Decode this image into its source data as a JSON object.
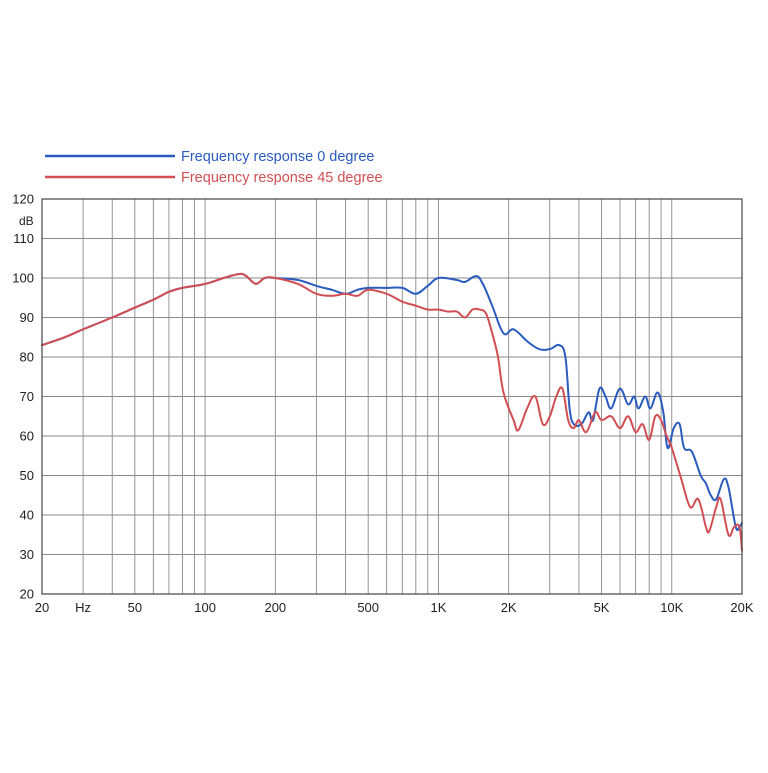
{
  "chart_data": {
    "type": "line",
    "x_scale": "log",
    "xlim": [
      20,
      20000
    ],
    "ylim": [
      20,
      120
    ],
    "grid": true,
    "legend_position": "top-left",
    "ylabel": "dB",
    "xlabel": "",
    "x_unit_tick": "Hz",
    "x_ticks": [
      {
        "value": 20,
        "label": "20"
      },
      {
        "value": 50,
        "label": "50"
      },
      {
        "value": 100,
        "label": "100"
      },
      {
        "value": 200,
        "label": "200"
      },
      {
        "value": 500,
        "label": "500"
      },
      {
        "value": 1000,
        "label": "1K"
      },
      {
        "value": 2000,
        "label": "2K"
      },
      {
        "value": 5000,
        "label": "5K"
      },
      {
        "value": 10000,
        "label": "10K"
      },
      {
        "value": 20000,
        "label": "20K"
      }
    ],
    "y_ticks": [
      "20",
      "30",
      "40",
      "50",
      "60",
      "70",
      "80",
      "90",
      "100",
      "110",
      "120"
    ],
    "series": [
      {
        "name": "Frequency response 0 degree",
        "color": "#2a5bbf",
        "points": [
          [
            20,
            83
          ],
          [
            25,
            85
          ],
          [
            30,
            87
          ],
          [
            40,
            90
          ],
          [
            50,
            92.5
          ],
          [
            60,
            94.5
          ],
          [
            70,
            96.5
          ],
          [
            80,
            97.5
          ],
          [
            100,
            98.5
          ],
          [
            120,
            100
          ],
          [
            140,
            101
          ],
          [
            150,
            100.5
          ],
          [
            165,
            98.5
          ],
          [
            180,
            100
          ],
          [
            200,
            100
          ],
          [
            250,
            99.5
          ],
          [
            300,
            98
          ],
          [
            350,
            97
          ],
          [
            400,
            96
          ],
          [
            450,
            97
          ],
          [
            500,
            97.5
          ],
          [
            600,
            97.5
          ],
          [
            700,
            97.5
          ],
          [
            800,
            96
          ],
          [
            900,
            98
          ],
          [
            1000,
            100
          ],
          [
            1200,
            99.5
          ],
          [
            1300,
            99
          ],
          [
            1450,
            100.5
          ],
          [
            1550,
            98.5
          ],
          [
            1700,
            93
          ],
          [
            1900,
            86
          ],
          [
            2100,
            87
          ],
          [
            2400,
            84
          ],
          [
            2700,
            82
          ],
          [
            3000,
            82
          ],
          [
            3300,
            83
          ],
          [
            3500,
            80
          ],
          [
            3650,
            67
          ],
          [
            3800,
            63
          ],
          [
            4100,
            63
          ],
          [
            4400,
            66
          ],
          [
            4600,
            64
          ],
          [
            4900,
            72
          ],
          [
            5200,
            70
          ],
          [
            5500,
            67
          ],
          [
            6000,
            72
          ],
          [
            6500,
            68
          ],
          [
            6900,
            70
          ],
          [
            7200,
            67
          ],
          [
            7700,
            70
          ],
          [
            8100,
            67
          ],
          [
            8700,
            71
          ],
          [
            9200,
            66
          ],
          [
            9600,
            57
          ],
          [
            10200,
            62
          ],
          [
            10800,
            63
          ],
          [
            11300,
            57
          ],
          [
            12200,
            56
          ],
          [
            13300,
            50
          ],
          [
            14000,
            48
          ],
          [
            14700,
            45
          ],
          [
            15500,
            44
          ],
          [
            16700,
            49
          ],
          [
            17500,
            47
          ],
          [
            18800,
            37
          ],
          [
            19500,
            37
          ],
          [
            20000,
            38
          ]
        ]
      },
      {
        "name": "Frequency response 45 degree",
        "color": "#d24e52",
        "points": [
          [
            20,
            83
          ],
          [
            25,
            85
          ],
          [
            30,
            87
          ],
          [
            40,
            90
          ],
          [
            50,
            92.5
          ],
          [
            60,
            94.5
          ],
          [
            70,
            96.5
          ],
          [
            80,
            97.5
          ],
          [
            100,
            98.5
          ],
          [
            120,
            100
          ],
          [
            140,
            101
          ],
          [
            150,
            100.5
          ],
          [
            165,
            98.5
          ],
          [
            180,
            100
          ],
          [
            200,
            100
          ],
          [
            250,
            98.5
          ],
          [
            300,
            96
          ],
          [
            350,
            95.5
          ],
          [
            400,
            96
          ],
          [
            450,
            95.5
          ],
          [
            500,
            97
          ],
          [
            600,
            96
          ],
          [
            700,
            94
          ],
          [
            800,
            93
          ],
          [
            900,
            92
          ],
          [
            1000,
            92
          ],
          [
            1100,
            91.5
          ],
          [
            1200,
            91.5
          ],
          [
            1300,
            90
          ],
          [
            1400,
            92
          ],
          [
            1500,
            92
          ],
          [
            1600,
            91
          ],
          [
            1700,
            86
          ],
          [
            1800,
            80
          ],
          [
            1900,
            71
          ],
          [
            2100,
            64
          ],
          [
            2200,
            61.5
          ],
          [
            2400,
            67
          ],
          [
            2600,
            70
          ],
          [
            2800,
            63
          ],
          [
            3000,
            65
          ],
          [
            3200,
            70
          ],
          [
            3400,
            72
          ],
          [
            3600,
            64
          ],
          [
            3800,
            62
          ],
          [
            4000,
            64
          ],
          [
            4300,
            61
          ],
          [
            4700,
            66
          ],
          [
            5000,
            64
          ],
          [
            5500,
            65
          ],
          [
            6000,
            62
          ],
          [
            6500,
            65
          ],
          [
            7000,
            61
          ],
          [
            7500,
            63
          ],
          [
            8000,
            59
          ],
          [
            8500,
            65
          ],
          [
            9000,
            64
          ],
          [
            9500,
            60
          ],
          [
            10000,
            57
          ],
          [
            11000,
            49
          ],
          [
            12000,
            42
          ],
          [
            13000,
            44
          ],
          [
            14000,
            37
          ],
          [
            14500,
            36
          ],
          [
            15500,
            42
          ],
          [
            16200,
            44
          ],
          [
            17500,
            35
          ],
          [
            18500,
            37
          ],
          [
            19500,
            37
          ],
          [
            20000,
            31
          ]
        ]
      }
    ]
  }
}
